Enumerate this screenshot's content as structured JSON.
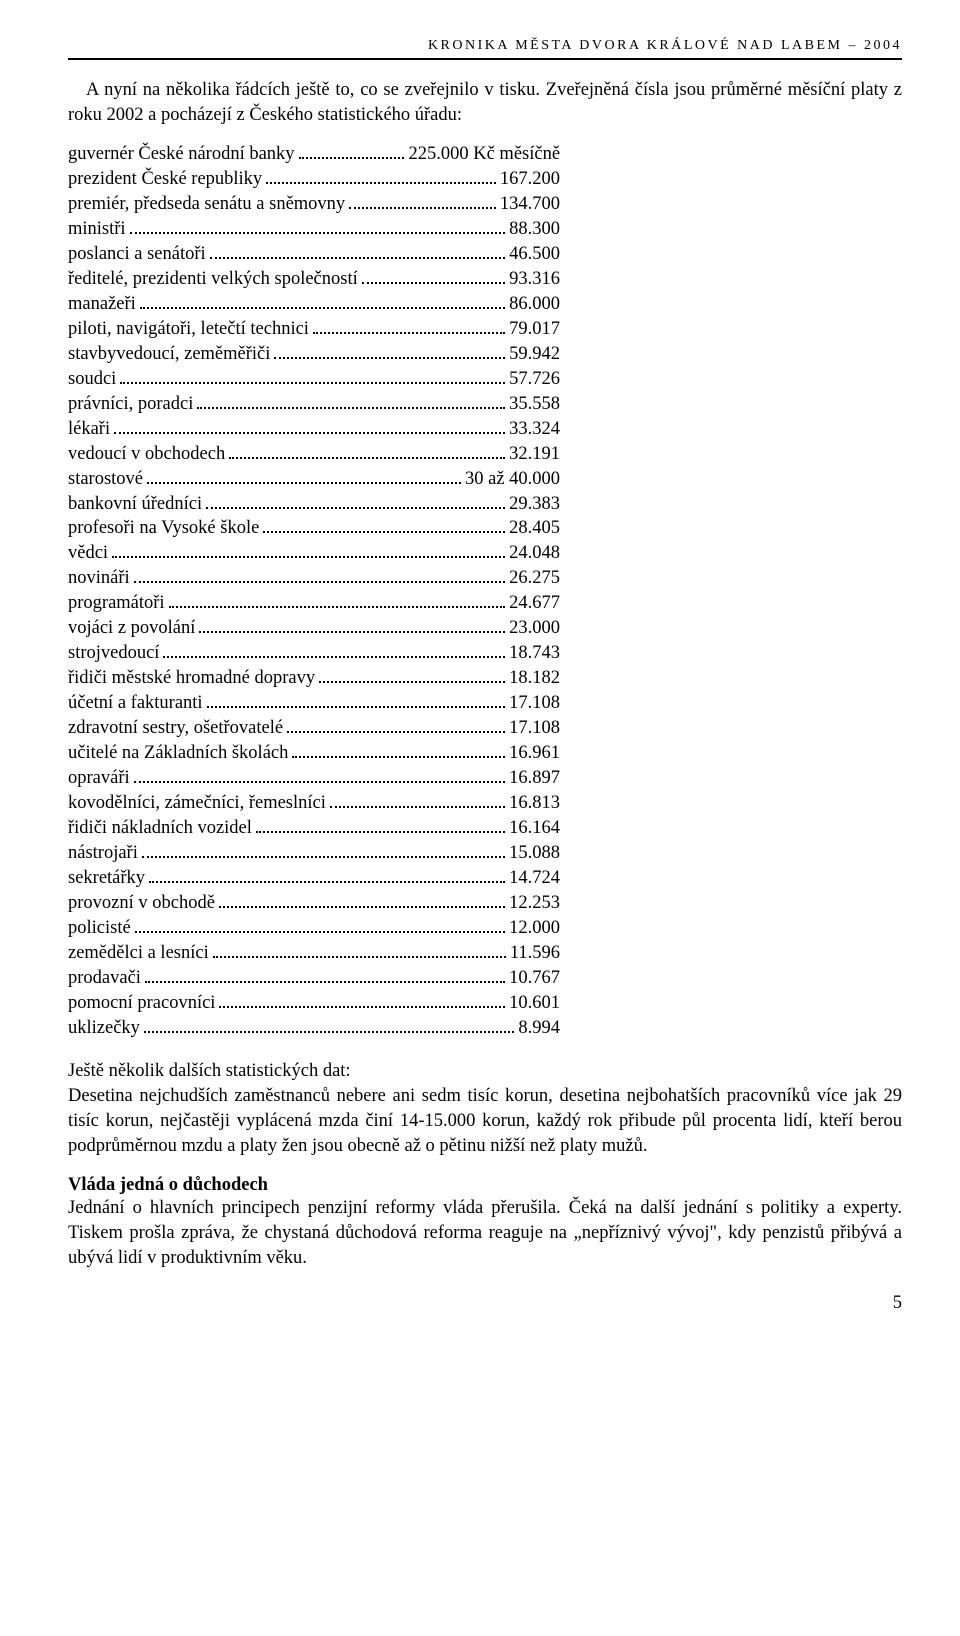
{
  "header": "KRONIKA MĚSTA DVORA KRÁLOVÉ NAD LABEM – 2004",
  "intro": "A nyní na několika řádcích ještě to, co se zveřejnilo v tisku. Zveřejněná čísla jsou průměrné měsíční platy z roku 2002 a pocházejí z Českého statistického úřadu:",
  "salaries": [
    {
      "label": "guvernér České národní banky",
      "value": "225.000 Kč měsíčně"
    },
    {
      "label": "prezident České republiky",
      "value": "167.200"
    },
    {
      "label": "premiér, předseda senátu a sněmovny",
      "value": "134.700"
    },
    {
      "label": "ministři",
      "value": "88.300"
    },
    {
      "label": "poslanci a senátoři",
      "value": "46.500"
    },
    {
      "label": "ředitelé, prezidenti velkých společností",
      "value": "93.316"
    },
    {
      "label": "manažeři",
      "value": "86.000"
    },
    {
      "label": "piloti, navigátoři, letečtí technici",
      "value": "79.017"
    },
    {
      "label": "stavbyvedoucí, zeměměřiči",
      "value": "59.942"
    },
    {
      "label": "soudci",
      "value": "57.726"
    },
    {
      "label": "právníci, poradci",
      "value": "35.558"
    },
    {
      "label": "lékaři",
      "value": "33.324"
    },
    {
      "label": "vedoucí v obchodech",
      "value": "32.191"
    },
    {
      "label": "starostové",
      "value": "30 až 40.000"
    },
    {
      "label": "bankovní úředníci",
      "value": "29.383"
    },
    {
      "label": "profesoři na Vysoké škole",
      "value": "28.405"
    },
    {
      "label": "vědci",
      "value": "24.048"
    },
    {
      "label": "novináři",
      "value": "26.275"
    },
    {
      "label": "programátoři",
      "value": "24.677"
    },
    {
      "label": "vojáci z povolání",
      "value": "23.000"
    },
    {
      "label": "strojvedoucí",
      "value": "18.743"
    },
    {
      "label": "řidiči městské hromadné dopravy",
      "value": "18.182"
    },
    {
      "label": "účetní a fakturanti",
      "value": "17.108"
    },
    {
      "label": "zdravotní sestry, ošetřovatelé",
      "value": "17.108"
    },
    {
      "label": "učitelé na Základních školách",
      "value": "16.961"
    },
    {
      "label": "opraváři",
      "value": "16.897"
    },
    {
      "label": "kovodělníci, zámečníci, řemeslníci",
      "value": "16.813"
    },
    {
      "label": "řidiči nákladních vozidel",
      "value": "16.164"
    },
    {
      "label": "nástrojaři",
      "value": "15.088"
    },
    {
      "label": "sekretářky",
      "value": "14.724"
    },
    {
      "label": "provozní v obchodě",
      "value": "12.253"
    },
    {
      "label": "policisté",
      "value": "12.000"
    },
    {
      "label": "zemědělci a lesníci",
      "value": "11.596"
    },
    {
      "label": "prodavači",
      "value": "10.767"
    },
    {
      "label": "pomocní pracovníci",
      "value": "10.601"
    },
    {
      "label": "uklizečky",
      "value": "8.994"
    }
  ],
  "stats_intro": "Ještě několik dalších statistických dat:",
  "stats_body": "Desetina nejchudších zaměstnanců nebere ani sedm tisíc korun, desetina nejbohatších pracovníků více jak 29 tisíc korun, nejčastěji vyplácená mzda činí 14-15.000 korun, každý rok přibude půl procenta lidí, kteří berou podprůměrnou mzdu a platy žen jsou obecně až o pětinu nižší než platy mužů.",
  "subheading": "Vláda jedná o důchodech",
  "pension_body": "Jednání o hlavních principech penzijní reformy vláda přerušila. Čeká na další jednání s politiky a experty. Tiskem prošla zpráva, že chystaná důchodová reforma reaguje na „nepříznivý vývoj\", kdy penzistů přibývá a ubývá lidí v produktivním věku.",
  "page_number": "5",
  "list_width_pct": 59
}
